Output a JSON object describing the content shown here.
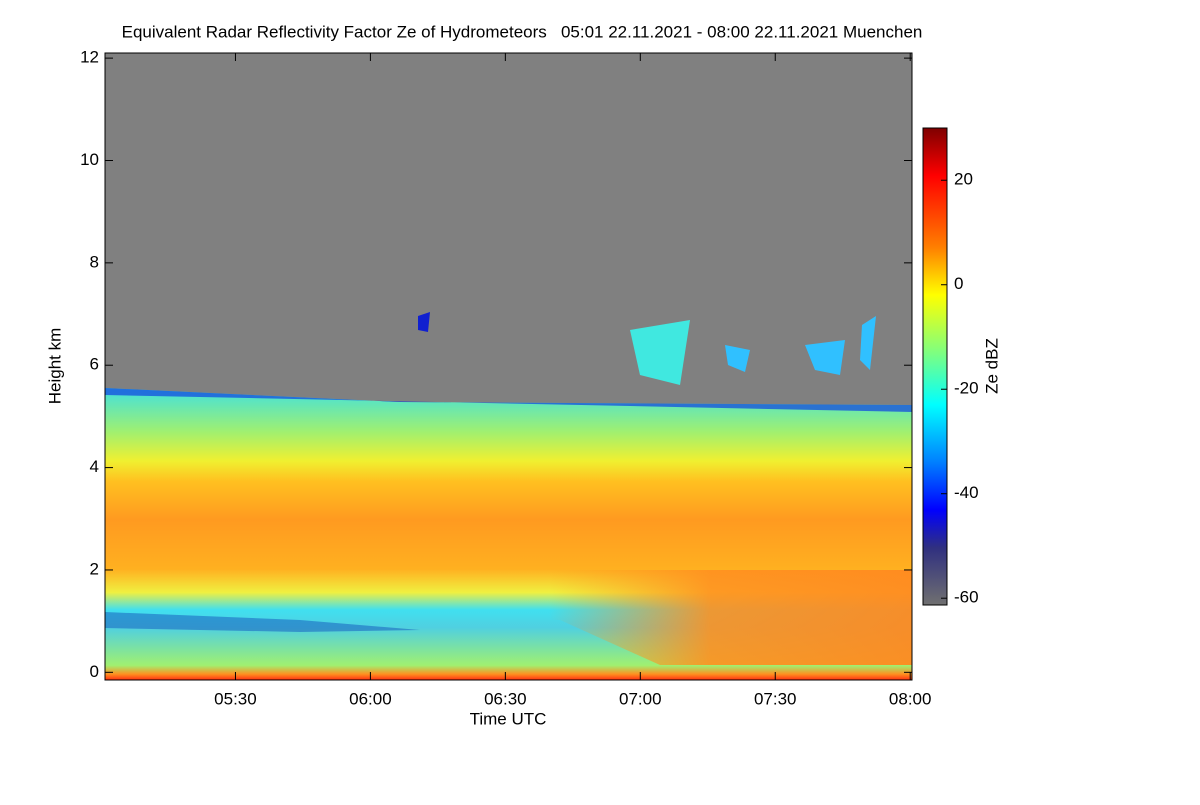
{
  "chart_data": {
    "type": "heatmap",
    "title": "Equivalent Radar Reflectivity Factor Ze of Hydrometeors   05:01 22.11.2021 - 08:00 22.11.2021 Muenchen",
    "x_label": "Time UTC",
    "y_label": "Height km",
    "xlim": [
      301,
      480.4
    ],
    "xticks": [
      {
        "value": 330,
        "label": "05:30"
      },
      {
        "value": 360,
        "label": "06:00"
      },
      {
        "value": 390,
        "label": "06:30"
      },
      {
        "value": 420,
        "label": "07:00"
      },
      {
        "value": 450,
        "label": "07:30"
      },
      {
        "value": 480,
        "label": "08:00"
      }
    ],
    "ylim": [
      -0.15,
      12.1
    ],
    "yticks": [
      0,
      2,
      4,
      6,
      8,
      10,
      12
    ],
    "colorbar": {
      "label": "Ze dBZ",
      "lim": [
        -61.3,
        30
      ],
      "ticks": [
        -60,
        -40,
        -20,
        0,
        20
      ]
    }
  }
}
